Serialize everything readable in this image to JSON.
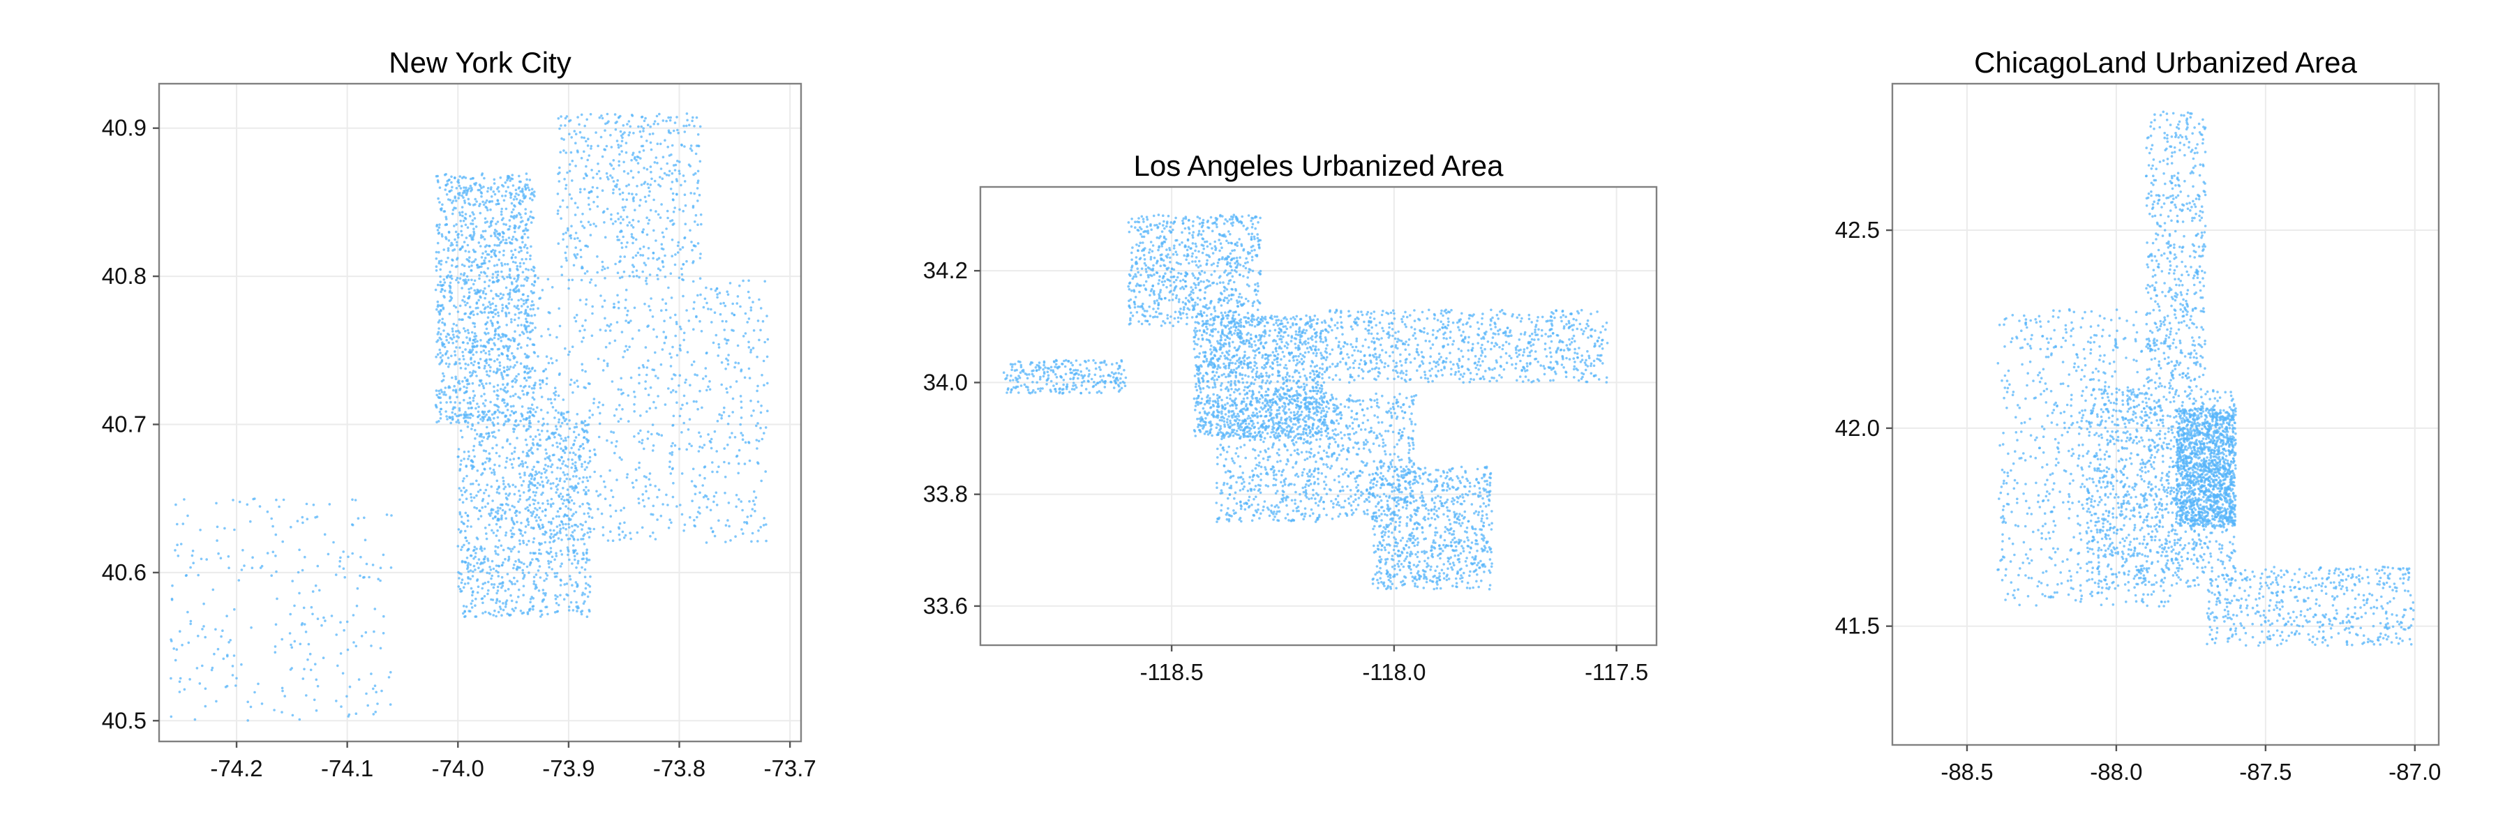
{
  "chart_data": [
    {
      "type": "scatter",
      "title": "New York City",
      "xlabel": "",
      "ylabel": "",
      "xlim": [
        -74.27,
        -73.69
      ],
      "ylim": [
        40.486,
        40.93
      ],
      "xticks": [
        -74.2,
        -74.1,
        -74.0,
        -73.9,
        -73.8,
        -73.7
      ],
      "xtick_labels": [
        "-74.2",
        "-74.1",
        "-74.0",
        "-73.9",
        "-73.8",
        "-73.7"
      ],
      "yticks": [
        40.5,
        40.6,
        40.7,
        40.8,
        40.9
      ],
      "ytick_labels": [
        "40.5",
        "40.6",
        "40.7",
        "40.8",
        "40.9"
      ],
      "grid": true,
      "point_color": "#56b4f9",
      "point_density_regions": [
        {
          "x": [
            -74.02,
            -73.93
          ],
          "y": [
            40.7,
            40.87
          ],
          "weight": 5
        },
        {
          "x": [
            -74.0,
            -73.88
          ],
          "y": [
            40.57,
            40.71
          ],
          "weight": 4
        },
        {
          "x": [
            -73.94,
            -73.72
          ],
          "y": [
            40.62,
            40.8
          ],
          "weight": 3
        },
        {
          "x": [
            -73.91,
            -73.78
          ],
          "y": [
            40.8,
            40.91
          ],
          "weight": 2
        },
        {
          "x": [
            -74.26,
            -74.06
          ],
          "y": [
            40.5,
            40.65
          ],
          "weight": 1
        }
      ]
    },
    {
      "type": "scatter",
      "title": "Los Angeles Urbanized Area",
      "xlabel": "",
      "ylabel": "",
      "xlim": [
        -118.93,
        -117.41
      ],
      "ylim": [
        33.53,
        34.35
      ],
      "xticks": [
        -118.5,
        -118.0,
        -117.5
      ],
      "xtick_labels": [
        "-118.5",
        "-118.0",
        "-117.5"
      ],
      "yticks": [
        33.6,
        33.8,
        34.0,
        34.2
      ],
      "ytick_labels": [
        "33.6",
        "33.8",
        "34.0",
        "34.2"
      ],
      "grid": true,
      "point_color": "#56b4f9",
      "point_density_regions": [
        {
          "x": [
            -118.45,
            -118.15
          ],
          "y": [
            33.9,
            34.12
          ],
          "weight": 5
        },
        {
          "x": [
            -118.4,
            -117.95
          ],
          "y": [
            33.75,
            33.98
          ],
          "weight": 4
        },
        {
          "x": [
            -118.6,
            -118.3
          ],
          "y": [
            34.1,
            34.3
          ],
          "weight": 3
        },
        {
          "x": [
            -118.15,
            -117.52
          ],
          "y": [
            34.0,
            34.13
          ],
          "weight": 3
        },
        {
          "x": [
            -118.05,
            -117.78
          ],
          "y": [
            33.63,
            33.85
          ],
          "weight": 3
        },
        {
          "x": [
            -118.88,
            -118.6
          ],
          "y": [
            33.98,
            34.04
          ],
          "weight": 1
        }
      ]
    },
    {
      "type": "scatter",
      "title": "ChicagoLand Urbanized Area",
      "xlabel": "",
      "ylabel": "",
      "xlim": [
        -88.75,
        -86.92
      ],
      "ylim": [
        41.2,
        42.87
      ],
      "xticks": [
        -88.5,
        -88.0,
        -87.5,
        -87.0
      ],
      "xtick_labels": [
        "-88.5",
        "-88.0",
        "-87.5",
        "-87.0"
      ],
      "yticks": [
        41.5,
        42.0,
        42.5
      ],
      "ytick_labels": [
        "41.5",
        "42.0",
        "42.5"
      ],
      "grid": true,
      "point_color": "#56b4f9",
      "point_density_regions": [
        {
          "x": [
            -87.8,
            -87.6
          ],
          "y": [
            41.75,
            42.05
          ],
          "weight": 5
        },
        {
          "x": [
            -88.1,
            -87.6
          ],
          "y": [
            41.6,
            42.1
          ],
          "weight": 4
        },
        {
          "x": [
            -88.4,
            -87.8
          ],
          "y": [
            41.55,
            42.3
          ],
          "weight": 3
        },
        {
          "x": [
            -87.9,
            -87.7
          ],
          "y": [
            42.1,
            42.8
          ],
          "weight": 2
        },
        {
          "x": [
            -87.7,
            -87.0
          ],
          "y": [
            41.45,
            41.65
          ],
          "weight": 2
        }
      ]
    }
  ]
}
